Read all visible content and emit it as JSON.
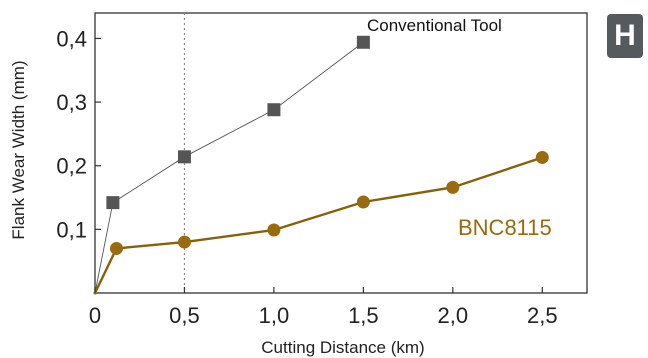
{
  "badge": "H",
  "chart_data": {
    "type": "line",
    "xlabel": "Cutting Distance (km)",
    "ylabel": "Flank Wear Width (mm)",
    "xlim": [
      0,
      2.75
    ],
    "ylim": [
      0,
      0.44
    ],
    "xticks": [
      0,
      0.5,
      1.0,
      1.5,
      2.0,
      2.5
    ],
    "xtick_labels": [
      "0",
      "0,5",
      "1,0",
      "1,5",
      "2,0",
      "2,5"
    ],
    "yticks": [
      0.1,
      0.2,
      0.3,
      0.4
    ],
    "ytick_labels": [
      "0,1",
      "0,2",
      "0,3",
      "0,4"
    ],
    "reference_line_x": 0.5,
    "grid": false,
    "series": [
      {
        "name": "Conventional Tool",
        "marker": "square",
        "color": "#555555",
        "line_color": "#555555",
        "x": [
          0,
          0.1,
          0.5,
          1.0,
          1.5
        ],
        "y": [
          0,
          0.142,
          0.214,
          0.288,
          0.394
        ]
      },
      {
        "name": "BNC8115",
        "marker": "circle",
        "color": "#9a6a0f",
        "line_color": "#8a5f0a",
        "x": [
          0,
          0.12,
          0.5,
          1.0,
          1.5,
          2.0,
          2.5
        ],
        "y": [
          0,
          0.07,
          0.08,
          0.099,
          0.143,
          0.166,
          0.213
        ]
      }
    ]
  }
}
